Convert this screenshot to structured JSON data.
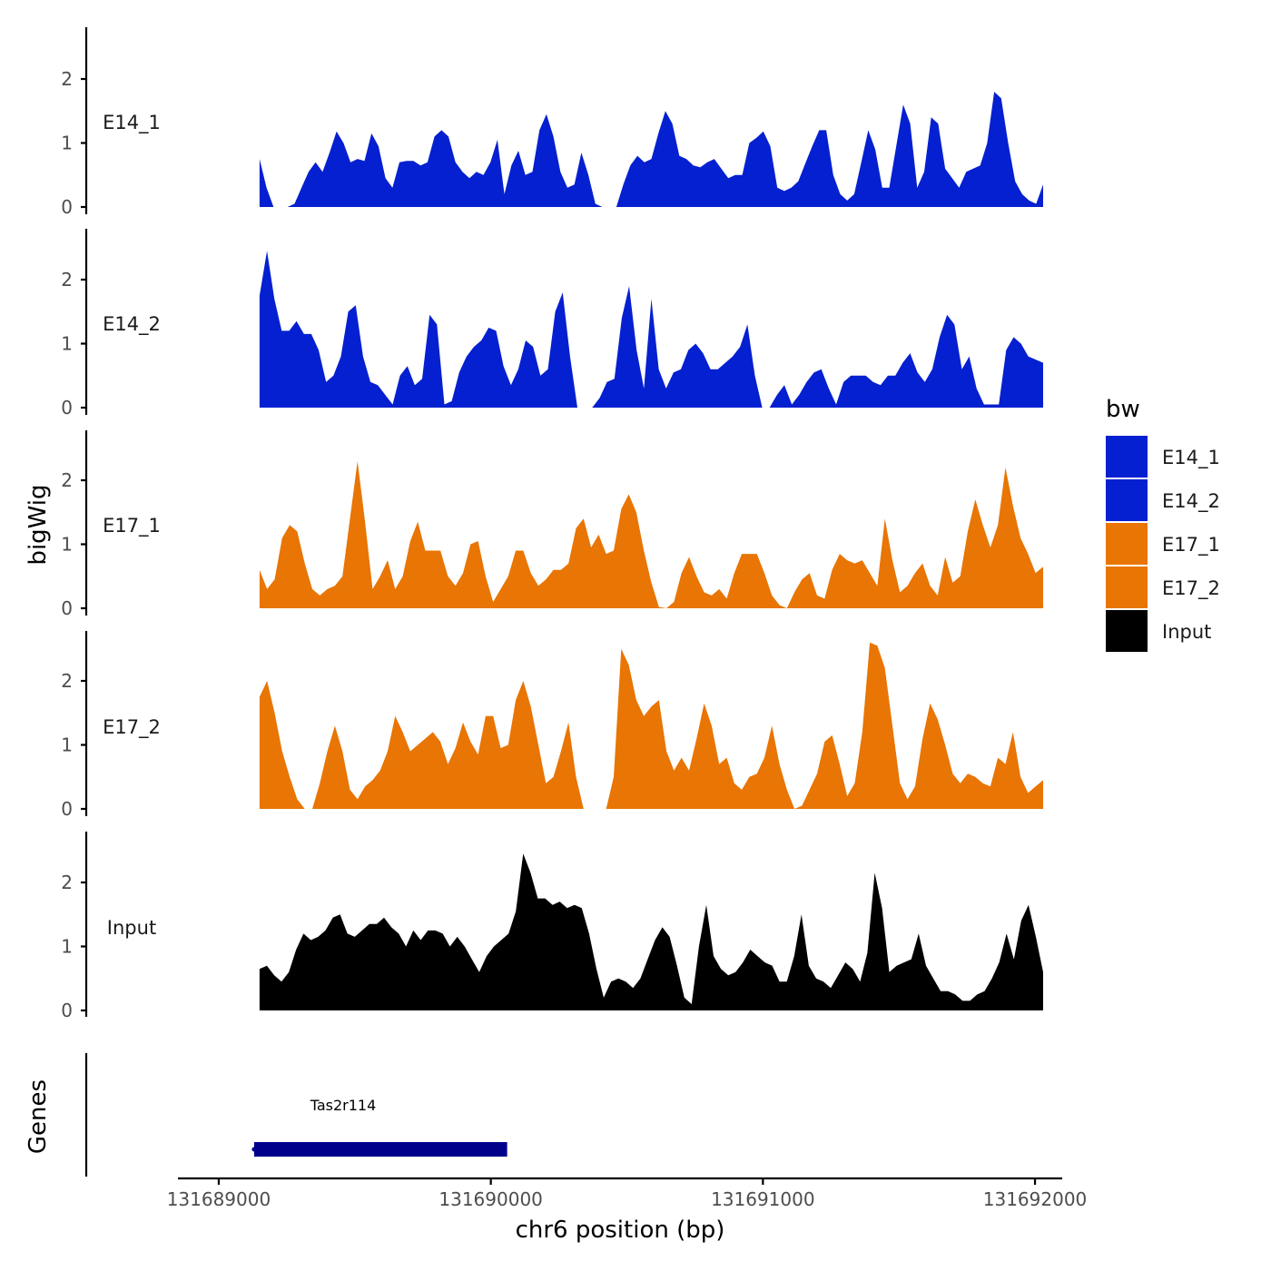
{
  "chart_data": {
    "type": "area",
    "xlabel": "chr6 position (bp)",
    "ylabel": "bigWig",
    "genes_label": "Genes",
    "xlim": [
      131688850,
      131692100
    ],
    "x_ticks": [
      131689000,
      131690000,
      131691000,
      131692000
    ],
    "x_tick_labels": [
      "131689000",
      "131690000",
      "131691000",
      "131692000"
    ],
    "ylim": [
      0,
      2.8
    ],
    "y_ticks": [
      0,
      1,
      2
    ],
    "y_tick_labels": [
      "0",
      "1",
      "2"
    ],
    "legend": {
      "title": "bw",
      "entries": [
        {
          "name": "E14_1",
          "color": "#0420D0"
        },
        {
          "name": "E14_2",
          "color": "#0420D0"
        },
        {
          "name": "E17_1",
          "color": "#E87504"
        },
        {
          "name": "E17_2",
          "color": "#E87504"
        },
        {
          "name": "Input",
          "color": "#000000"
        }
      ]
    },
    "series": [
      {
        "name": "E14_1",
        "color": "#0420D0",
        "x_start": 131689150,
        "x_end": 131692030,
        "values": [
          0.75,
          0.3,
          0,
          0,
          0,
          0.05,
          0.3,
          0.55,
          0.7,
          0.55,
          0.85,
          1.18,
          1.0,
          0.7,
          0.75,
          0.72,
          1.15,
          0.95,
          0.45,
          0.3,
          0.7,
          0.72,
          0.72,
          0.65,
          0.7,
          1.1,
          1.2,
          1.1,
          0.7,
          0.55,
          0.45,
          0.55,
          0.5,
          0.7,
          1.05,
          0.2,
          0.65,
          0.88,
          0.5,
          0.55,
          1.2,
          1.45,
          1.1,
          0.55,
          0.3,
          0.35,
          0.85,
          0.5,
          0.05,
          0,
          0,
          0,
          0.35,
          0.65,
          0.8,
          0.7,
          0.75,
          1.15,
          1.5,
          1.3,
          0.8,
          0.75,
          0.65,
          0.62,
          0.7,
          0.75,
          0.6,
          0.45,
          0.5,
          0.5,
          1.0,
          1.08,
          1.18,
          0.95,
          0.3,
          0.25,
          0.3,
          0.4,
          0.68,
          0.95,
          1.2,
          1.2,
          0.5,
          0.2,
          0.1,
          0.2,
          0.7,
          1.2,
          0.9,
          0.3,
          0.3,
          0.95,
          1.6,
          1.3,
          0.3,
          0.55,
          1.4,
          1.3,
          0.6,
          0.45,
          0.3,
          0.55,
          0.6,
          0.65,
          1.0,
          1.8,
          1.7,
          1.0,
          0.4,
          0.2,
          0.1,
          0.05,
          0.35
        ]
      },
      {
        "name": "E14_2",
        "color": "#0420D0",
        "x_start": 131689150,
        "x_end": 131692030,
        "values": [
          1.75,
          2.45,
          1.7,
          1.2,
          1.2,
          1.35,
          1.15,
          1.15,
          0.9,
          0.4,
          0.5,
          0.8,
          1.5,
          1.6,
          0.8,
          0.4,
          0.35,
          0.2,
          0.05,
          0.5,
          0.65,
          0.35,
          0.45,
          1.45,
          1.3,
          0.05,
          0.1,
          0.55,
          0.8,
          0.95,
          1.05,
          1.25,
          1.2,
          0.65,
          0.35,
          0.6,
          1.05,
          0.95,
          0.5,
          0.6,
          1.5,
          1.8,
          0.8,
          0,
          0,
          0,
          0.15,
          0.4,
          0.45,
          1.4,
          1.9,
          0.9,
          0.3,
          1.7,
          0.6,
          0.3,
          0.55,
          0.6,
          0.9,
          1.0,
          0.85,
          0.6,
          0.6,
          0.7,
          0.8,
          0.95,
          1.3,
          0.5,
          0,
          0,
          0.2,
          0.35,
          0.05,
          0.2,
          0.4,
          0.55,
          0.6,
          0.3,
          0.05,
          0.4,
          0.5,
          0.5,
          0.5,
          0.4,
          0.35,
          0.5,
          0.5,
          0.7,
          0.85,
          0.55,
          0.4,
          0.6,
          1.1,
          1.45,
          1.3,
          0.6,
          0.8,
          0.3,
          0.05,
          0.05,
          0.05,
          0.9,
          1.1,
          1.0,
          0.8,
          0.75,
          0.7
        ]
      },
      {
        "name": "E17_1",
        "color": "#E87504",
        "x_start": 131689150,
        "x_end": 131692030,
        "values": [
          0.6,
          0.3,
          0.45,
          1.1,
          1.3,
          1.2,
          0.7,
          0.3,
          0.2,
          0.3,
          0.35,
          0.5,
          1.4,
          2.3,
          1.35,
          0.3,
          0.5,
          0.75,
          0.3,
          0.5,
          1.05,
          1.35,
          0.9,
          0.9,
          0.9,
          0.5,
          0.35,
          0.55,
          1.0,
          1.05,
          0.5,
          0.1,
          0.3,
          0.5,
          0.9,
          0.9,
          0.55,
          0.35,
          0.45,
          0.6,
          0.6,
          0.7,
          1.25,
          1.4,
          0.95,
          1.15,
          0.85,
          0.9,
          1.55,
          1.78,
          1.5,
          0.9,
          0.4,
          0.02,
          0.0,
          0.1,
          0.55,
          0.8,
          0.5,
          0.25,
          0.2,
          0.3,
          0.15,
          0.55,
          0.85,
          0.85,
          0.85,
          0.55,
          0.2,
          0.05,
          0.0,
          0.25,
          0.45,
          0.55,
          0.2,
          0.15,
          0.6,
          0.85,
          0.75,
          0.7,
          0.75,
          0.55,
          0.35,
          1.4,
          0.75,
          0.25,
          0.35,
          0.55,
          0.7,
          0.35,
          0.2,
          0.8,
          0.4,
          0.5,
          1.2,
          1.7,
          1.3,
          0.95,
          1.3,
          2.2,
          1.6,
          1.1,
          0.85,
          0.55,
          0.65
        ]
      },
      {
        "name": "E17_2",
        "color": "#E87504",
        "x_start": 131689150,
        "x_end": 131692030,
        "values": [
          1.75,
          2.0,
          1.5,
          0.9,
          0.5,
          0.15,
          0.0,
          0.0,
          0.4,
          0.9,
          1.3,
          0.9,
          0.3,
          0.15,
          0.35,
          0.45,
          0.6,
          0.9,
          1.45,
          1.2,
          0.9,
          1.0,
          1.1,
          1.2,
          1.05,
          0.7,
          0.95,
          1.35,
          1.05,
          0.85,
          1.45,
          1.45,
          0.95,
          1.0,
          1.7,
          2.0,
          1.6,
          1.0,
          0.4,
          0.5,
          0.9,
          1.35,
          0.5,
          0.0,
          0.0,
          0.0,
          0.0,
          0.5,
          2.5,
          2.25,
          1.7,
          1.45,
          1.6,
          1.7,
          0.9,
          0.6,
          0.8,
          0.6,
          1.1,
          1.65,
          1.3,
          0.7,
          0.8,
          0.4,
          0.3,
          0.5,
          0.55,
          0.8,
          1.3,
          0.7,
          0.3,
          0.0,
          0.05,
          0.3,
          0.55,
          1.05,
          1.15,
          0.7,
          0.2,
          0.4,
          1.2,
          2.6,
          2.55,
          2.2,
          1.3,
          0.4,
          0.15,
          0.35,
          1.1,
          1.65,
          1.4,
          1.0,
          0.55,
          0.4,
          0.55,
          0.5,
          0.4,
          0.35,
          0.8,
          0.7,
          1.2,
          0.5,
          0.25,
          0.35,
          0.45
        ]
      },
      {
        "name": "Input",
        "color": "#000000",
        "x_start": 131689150,
        "x_end": 131692030,
        "values": [
          0.65,
          0.7,
          0.55,
          0.45,
          0.6,
          0.95,
          1.2,
          1.1,
          1.15,
          1.25,
          1.45,
          1.5,
          1.2,
          1.15,
          1.25,
          1.35,
          1.35,
          1.45,
          1.3,
          1.2,
          1.0,
          1.25,
          1.1,
          1.25,
          1.25,
          1.2,
          1.0,
          1.15,
          1.0,
          0.8,
          0.6,
          0.85,
          1.0,
          1.1,
          1.2,
          1.55,
          2.45,
          2.15,
          1.75,
          1.75,
          1.65,
          1.7,
          1.6,
          1.65,
          1.6,
          1.2,
          0.65,
          0.2,
          0.45,
          0.5,
          0.45,
          0.35,
          0.5,
          0.8,
          1.1,
          1.3,
          1.15,
          0.7,
          0.2,
          0.1,
          1.0,
          1.65,
          0.85,
          0.65,
          0.55,
          0.6,
          0.75,
          0.95,
          0.85,
          0.75,
          0.7,
          0.45,
          0.45,
          0.85,
          1.5,
          0.7,
          0.5,
          0.45,
          0.35,
          0.55,
          0.75,
          0.65,
          0.45,
          0.9,
          2.15,
          1.6,
          0.6,
          0.7,
          0.75,
          0.8,
          1.2,
          0.7,
          0.5,
          0.3,
          0.3,
          0.25,
          0.15,
          0.15,
          0.25,
          0.3,
          0.5,
          0.75,
          1.2,
          0.8,
          1.4,
          1.65,
          1.15,
          0.6
        ]
      }
    ],
    "genes": [
      {
        "name": "Tas2r114",
        "start": 131689130,
        "end": 131690060,
        "color": "#00008B"
      }
    ]
  }
}
